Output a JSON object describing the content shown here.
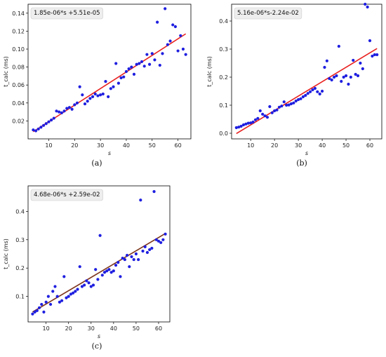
{
  "chart_data": [
    {
      "type": "scatter",
      "caption": "(a)",
      "annotation": "1.85e-06*s +5.51e-05",
      "ylabel": "t_calc (ms)",
      "xlabel": "s",
      "xlim": [
        2,
        65
      ],
      "ylim": [
        0,
        0.15
      ],
      "xticks": [
        10,
        20,
        30,
        40,
        50,
        60
      ],
      "yticks": [
        0.02,
        0.04,
        0.06,
        0.08,
        0.1,
        0.12,
        0.14
      ],
      "ytick_labels": [
        "0.02",
        "0.04",
        "0.06",
        "0.08",
        "0.10",
        "0.12",
        "0.14"
      ],
      "fit_line": {
        "x": [
          4,
          63
        ],
        "y": [
          0.008,
          0.117
        ],
        "color": "#e8201e"
      },
      "point_color": "#1f1fe0",
      "points": [
        [
          4,
          0.01
        ],
        [
          5,
          0.009
        ],
        [
          6,
          0.011
        ],
        [
          7,
          0.013
        ],
        [
          8,
          0.015
        ],
        [
          9,
          0.017
        ],
        [
          10,
          0.019
        ],
        [
          11,
          0.021
        ],
        [
          12,
          0.023
        ],
        [
          13,
          0.031
        ],
        [
          14,
          0.03
        ],
        [
          15,
          0.029
        ],
        [
          16,
          0.031
        ],
        [
          17,
          0.034
        ],
        [
          18,
          0.035
        ],
        [
          19,
          0.033
        ],
        [
          20,
          0.038
        ],
        [
          21,
          0.04
        ],
        [
          22,
          0.058
        ],
        [
          23,
          0.049
        ],
        [
          24,
          0.039
        ],
        [
          25,
          0.042
        ],
        [
          26,
          0.045
        ],
        [
          27,
          0.047
        ],
        [
          28,
          0.05
        ],
        [
          29,
          0.048
        ],
        [
          30,
          0.049
        ],
        [
          31,
          0.05
        ],
        [
          32,
          0.064
        ],
        [
          33,
          0.047
        ],
        [
          34,
          0.056
        ],
        [
          35,
          0.058
        ],
        [
          36,
          0.084
        ],
        [
          37,
          0.062
        ],
        [
          38,
          0.068
        ],
        [
          39,
          0.069
        ],
        [
          40,
          0.075
        ],
        [
          41,
          0.078
        ],
        [
          42,
          0.08
        ],
        [
          43,
          0.072
        ],
        [
          44,
          0.083
        ],
        [
          45,
          0.084
        ],
        [
          46,
          0.086
        ],
        [
          47,
          0.081
        ],
        [
          48,
          0.094
        ],
        [
          49,
          0.083
        ],
        [
          50,
          0.095
        ],
        [
          51,
          0.088
        ],
        [
          52,
          0.13
        ],
        [
          53,
          0.082
        ],
        [
          54,
          0.095
        ],
        [
          55,
          0.145
        ],
        [
          56,
          0.105
        ],
        [
          57,
          0.109
        ],
        [
          58,
          0.127
        ],
        [
          59,
          0.125
        ],
        [
          60,
          0.098
        ],
        [
          61,
          0.115
        ],
        [
          62,
          0.1
        ],
        [
          63,
          0.094
        ]
      ]
    },
    {
      "type": "scatter",
      "caption": "(b)",
      "annotation": "5.16e-06*s-2.24e-02",
      "ylabel": "t_calc (ms)",
      "xlabel": "s",
      "xlim": [
        2,
        65
      ],
      "ylim": [
        -0.02,
        0.46
      ],
      "xticks": [
        10,
        20,
        30,
        40,
        50,
        60
      ],
      "yticks": [
        0.0,
        0.1,
        0.2,
        0.3,
        0.4
      ],
      "ytick_labels": [
        "0.0",
        "0.1",
        "0.2",
        "0.3",
        "0.4"
      ],
      "fit_line": {
        "x": [
          4,
          63
        ],
        "y": [
          -0.001,
          0.302
        ],
        "color": "#e8201e"
      },
      "point_color": "#1f1fe0",
      "points": [
        [
          4,
          0.02
        ],
        [
          5,
          0.022
        ],
        [
          6,
          0.025
        ],
        [
          7,
          0.03
        ],
        [
          8,
          0.033
        ],
        [
          9,
          0.036
        ],
        [
          10,
          0.037
        ],
        [
          11,
          0.04
        ],
        [
          12,
          0.048
        ],
        [
          13,
          0.053
        ],
        [
          14,
          0.08
        ],
        [
          15,
          0.068
        ],
        [
          16,
          0.062
        ],
        [
          17,
          0.057
        ],
        [
          18,
          0.095
        ],
        [
          19,
          0.073
        ],
        [
          20,
          0.08
        ],
        [
          21,
          0.083
        ],
        [
          22,
          0.093
        ],
        [
          23,
          0.097
        ],
        [
          24,
          0.112
        ],
        [
          25,
          0.1
        ],
        [
          26,
          0.101
        ],
        [
          27,
          0.105
        ],
        [
          28,
          0.108
        ],
        [
          29,
          0.115
        ],
        [
          30,
          0.12
        ],
        [
          31,
          0.123
        ],
        [
          32,
          0.13
        ],
        [
          33,
          0.135
        ],
        [
          34,
          0.142
        ],
        [
          35,
          0.148
        ],
        [
          36,
          0.155
        ],
        [
          37,
          0.16
        ],
        [
          38,
          0.148
        ],
        [
          39,
          0.14
        ],
        [
          40,
          0.15
        ],
        [
          41,
          0.235
        ],
        [
          42,
          0.258
        ],
        [
          43,
          0.195
        ],
        [
          44,
          0.19
        ],
        [
          45,
          0.2
        ],
        [
          46,
          0.205
        ],
        [
          47,
          0.31
        ],
        [
          48,
          0.185
        ],
        [
          49,
          0.2
        ],
        [
          50,
          0.205
        ],
        [
          51,
          0.175
        ],
        [
          52,
          0.2
        ],
        [
          53,
          0.26
        ],
        [
          54,
          0.21
        ],
        [
          55,
          0.205
        ],
        [
          56,
          0.25
        ],
        [
          57,
          0.23
        ],
        [
          58,
          0.46
        ],
        [
          59,
          0.45
        ],
        [
          60,
          0.33
        ],
        [
          61,
          0.275
        ],
        [
          62,
          0.28
        ],
        [
          63,
          0.28
        ]
      ]
    },
    {
      "type": "scatter",
      "caption": "(c)",
      "annotation": "4.68e-06*s +2.59e-02",
      "ylabel": "t_calc (ms)",
      "xlabel": "s",
      "xlim": [
        2,
        65
      ],
      "ylim": [
        0.01,
        0.49
      ],
      "xticks": [
        10,
        20,
        30,
        40,
        50,
        60
      ],
      "yticks": [
        0.1,
        0.2,
        0.3,
        0.4
      ],
      "ytick_labels": [
        "0.1",
        "0.2",
        "0.3",
        "0.4"
      ],
      "fit_line": {
        "x": [
          4,
          63
        ],
        "y": [
          0.045,
          0.322
        ],
        "color": "#8b1a1a",
        "overlay_color": "#5a6f1a"
      },
      "point_color": "#1f1fe0",
      "points": [
        [
          4,
          0.038
        ],
        [
          5,
          0.045
        ],
        [
          6,
          0.05
        ],
        [
          7,
          0.06
        ],
        [
          8,
          0.072
        ],
        [
          9,
          0.045
        ],
        [
          10,
          0.08
        ],
        [
          11,
          0.1
        ],
        [
          12,
          0.072
        ],
        [
          13,
          0.118
        ],
        [
          14,
          0.135
        ],
        [
          15,
          0.1
        ],
        [
          16,
          0.08
        ],
        [
          17,
          0.085
        ],
        [
          18,
          0.17
        ],
        [
          19,
          0.095
        ],
        [
          20,
          0.1
        ],
        [
          21,
          0.108
        ],
        [
          22,
          0.112
        ],
        [
          23,
          0.118
        ],
        [
          24,
          0.125
        ],
        [
          25,
          0.205
        ],
        [
          26,
          0.135
        ],
        [
          27,
          0.14
        ],
        [
          28,
          0.155
        ],
        [
          29,
          0.148
        ],
        [
          30,
          0.135
        ],
        [
          31,
          0.14
        ],
        [
          32,
          0.195
        ],
        [
          33,
          0.16
        ],
        [
          34,
          0.315
        ],
        [
          35,
          0.175
        ],
        [
          36,
          0.185
        ],
        [
          37,
          0.19
        ],
        [
          38,
          0.195
        ],
        [
          39,
          0.185
        ],
        [
          40,
          0.19
        ],
        [
          41,
          0.21
        ],
        [
          42,
          0.22
        ],
        [
          43,
          0.17
        ],
        [
          44,
          0.235
        ],
        [
          45,
          0.23
        ],
        [
          46,
          0.245
        ],
        [
          47,
          0.205
        ],
        [
          48,
          0.24
        ],
        [
          49,
          0.23
        ],
        [
          50,
          0.25
        ],
        [
          51,
          0.23
        ],
        [
          52,
          0.44
        ],
        [
          53,
          0.26
        ],
        [
          54,
          0.275
        ],
        [
          55,
          0.255
        ],
        [
          56,
          0.265
        ],
        [
          57,
          0.27
        ],
        [
          58,
          0.47
        ],
        [
          59,
          0.3
        ],
        [
          60,
          0.295
        ],
        [
          61,
          0.29
        ],
        [
          62,
          0.3
        ],
        [
          63,
          0.32
        ]
      ]
    }
  ]
}
